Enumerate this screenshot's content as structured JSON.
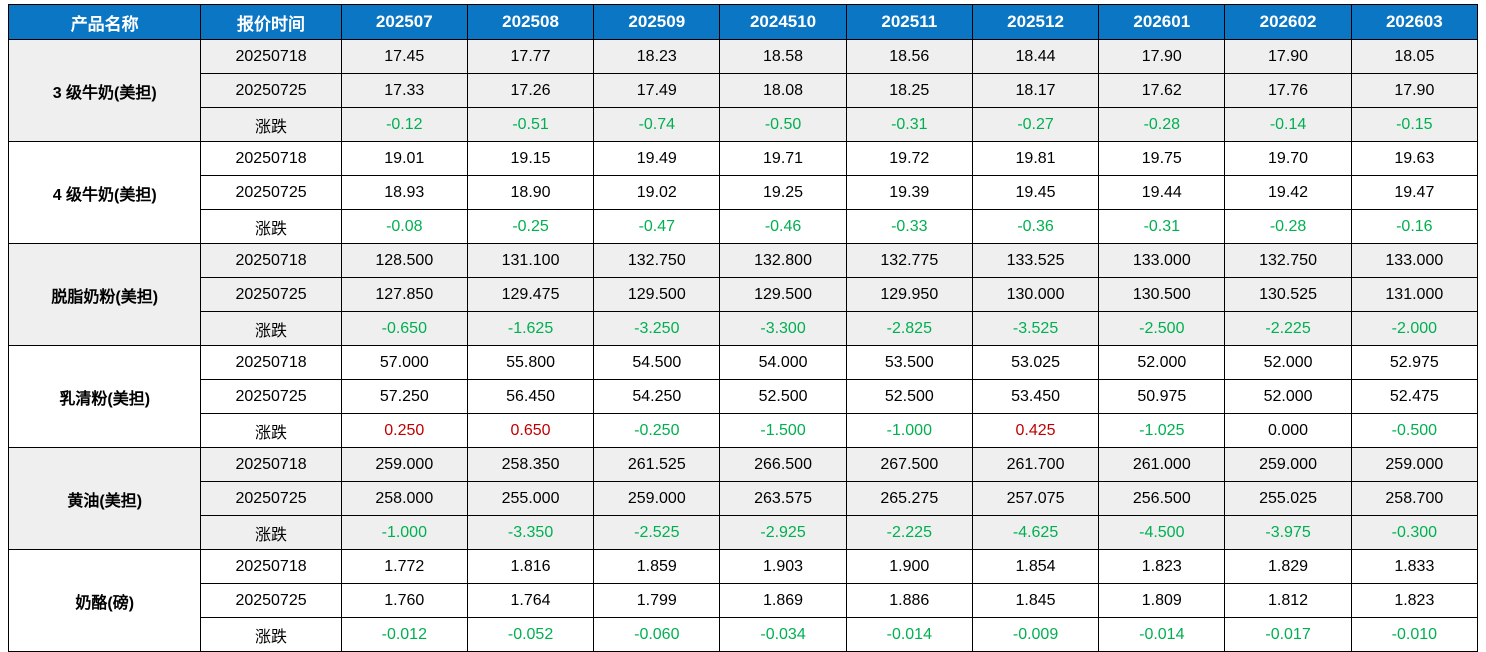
{
  "colors": {
    "header_bg": "#0B76C4",
    "header_text": "#FFFFFF",
    "group_shaded_bg": "#EFEFEF",
    "group_plain_bg": "#FFFFFF",
    "change_positive": "#C00000",
    "change_negative": "#00B050",
    "change_zero": "#000000",
    "border": "#000000"
  },
  "table": {
    "columns": [
      "产品名称",
      "报价时间",
      "202507",
      "202508",
      "202509",
      "2024510",
      "202511",
      "202512",
      "202601",
      "202602",
      "202603"
    ],
    "groups": [
      {
        "product": "3 级牛奶(美担)",
        "shaded": true,
        "rows": [
          {
            "label": "20250718",
            "type": "price",
            "values": [
              "17.45",
              "17.77",
              "18.23",
              "18.58",
              "18.56",
              "18.44",
              "17.90",
              "17.90",
              "18.05"
            ]
          },
          {
            "label": "20250725",
            "type": "price",
            "values": [
              "17.33",
              "17.26",
              "17.49",
              "18.08",
              "18.25",
              "18.17",
              "17.62",
              "17.76",
              "17.90"
            ]
          },
          {
            "label": "涨跌",
            "type": "change",
            "values": [
              "-0.12",
              "-0.51",
              "-0.74",
              "-0.50",
              "-0.31",
              "-0.27",
              "-0.28",
              "-0.14",
              "-0.15"
            ]
          }
        ]
      },
      {
        "product": "4 级牛奶(美担)",
        "shaded": false,
        "rows": [
          {
            "label": "20250718",
            "type": "price",
            "values": [
              "19.01",
              "19.15",
              "19.49",
              "19.71",
              "19.72",
              "19.81",
              "19.75",
              "19.70",
              "19.63"
            ]
          },
          {
            "label": "20250725",
            "type": "price",
            "values": [
              "18.93",
              "18.90",
              "19.02",
              "19.25",
              "19.39",
              "19.45",
              "19.44",
              "19.42",
              "19.47"
            ]
          },
          {
            "label": "涨跌",
            "type": "change",
            "values": [
              "-0.08",
              "-0.25",
              "-0.47",
              "-0.46",
              "-0.33",
              "-0.36",
              "-0.31",
              "-0.28",
              "-0.16"
            ]
          }
        ]
      },
      {
        "product": "脱脂奶粉(美担)",
        "shaded": true,
        "rows": [
          {
            "label": "20250718",
            "type": "price",
            "values": [
              "128.500",
              "131.100",
              "132.750",
              "132.800",
              "132.775",
              "133.525",
              "133.000",
              "132.750",
              "133.000"
            ]
          },
          {
            "label": "20250725",
            "type": "price",
            "values": [
              "127.850",
              "129.475",
              "129.500",
              "129.500",
              "129.950",
              "130.000",
              "130.500",
              "130.525",
              "131.000"
            ]
          },
          {
            "label": "涨跌",
            "type": "change",
            "values": [
              "-0.650",
              "-1.625",
              "-3.250",
              "-3.300",
              "-2.825",
              "-3.525",
              "-2.500",
              "-2.225",
              "-2.000"
            ]
          }
        ]
      },
      {
        "product": "乳清粉(美担)",
        "shaded": false,
        "rows": [
          {
            "label": "20250718",
            "type": "price",
            "values": [
              "57.000",
              "55.800",
              "54.500",
              "54.000",
              "53.500",
              "53.025",
              "52.000",
              "52.000",
              "52.975"
            ]
          },
          {
            "label": "20250725",
            "type": "price",
            "values": [
              "57.250",
              "56.450",
              "54.250",
              "52.500",
              "52.500",
              "53.450",
              "50.975",
              "52.000",
              "52.475"
            ]
          },
          {
            "label": "涨跌",
            "type": "change",
            "values": [
              "0.250",
              "0.650",
              "-0.250",
              "-1.500",
              "-1.000",
              "0.425",
              "-1.025",
              "0.000",
              "-0.500"
            ]
          }
        ]
      },
      {
        "product": "黄油(美担)",
        "shaded": true,
        "rows": [
          {
            "label": "20250718",
            "type": "price",
            "values": [
              "259.000",
              "258.350",
              "261.525",
              "266.500",
              "267.500",
              "261.700",
              "261.000",
              "259.000",
              "259.000"
            ]
          },
          {
            "label": "20250725",
            "type": "price",
            "values": [
              "258.000",
              "255.000",
              "259.000",
              "263.575",
              "265.275",
              "257.075",
              "256.500",
              "255.025",
              "258.700"
            ]
          },
          {
            "label": "涨跌",
            "type": "change",
            "values": [
              "-1.000",
              "-3.350",
              "-2.525",
              "-2.925",
              "-2.225",
              "-4.625",
              "-4.500",
              "-3.975",
              "-0.300"
            ]
          }
        ]
      },
      {
        "product": "奶酪(磅)",
        "shaded": false,
        "rows": [
          {
            "label": "20250718",
            "type": "price",
            "values": [
              "1.772",
              "1.816",
              "1.859",
              "1.903",
              "1.900",
              "1.854",
              "1.823",
              "1.829",
              "1.833"
            ]
          },
          {
            "label": "20250725",
            "type": "price",
            "values": [
              "1.760",
              "1.764",
              "1.799",
              "1.869",
              "1.886",
              "1.845",
              "1.809",
              "1.812",
              "1.823"
            ]
          },
          {
            "label": "涨跌",
            "type": "change",
            "values": [
              "-0.012",
              "-0.052",
              "-0.060",
              "-0.034",
              "-0.014",
              "-0.009",
              "-0.014",
              "-0.017",
              "-0.010"
            ]
          }
        ]
      }
    ]
  }
}
